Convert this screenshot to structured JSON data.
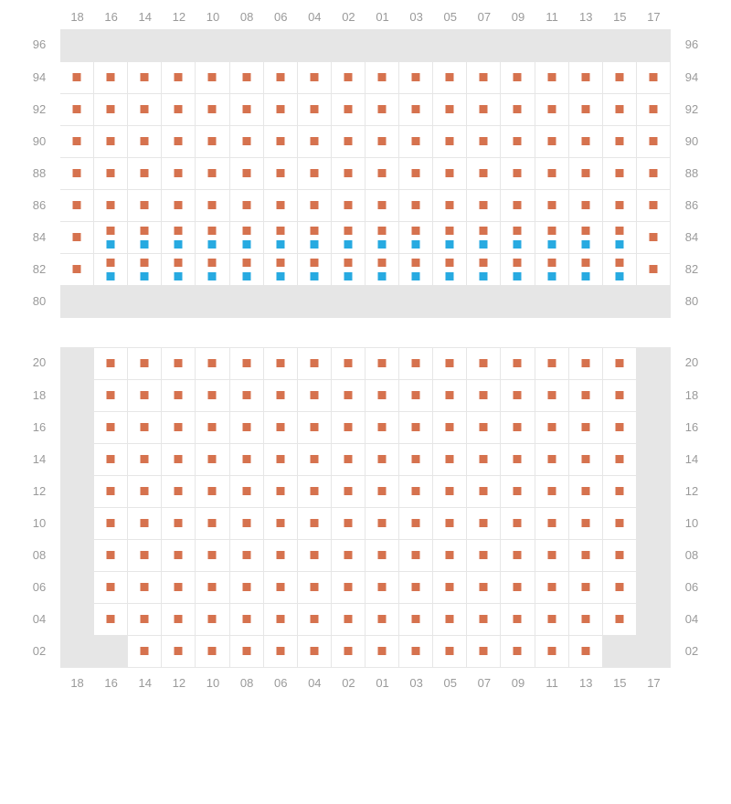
{
  "colors": {
    "cell_bg": "#ffffff",
    "empty_bg": "#e6e6e6",
    "grid_line": "#e6e6e6",
    "label": "#9a9a9a",
    "marker_orange": "#d6724e",
    "marker_blue": "#27aae1"
  },
  "columns": [
    "18",
    "16",
    "14",
    "12",
    "10",
    "08",
    "06",
    "04",
    "02",
    "01",
    "03",
    "05",
    "07",
    "09",
    "11",
    "13",
    "15",
    "17"
  ],
  "top": {
    "rows": [
      {
        "label": "96",
        "cells": [
          "empty",
          "empty",
          "empty",
          "empty",
          "empty",
          "empty",
          "empty",
          "empty",
          "empty",
          "empty",
          "empty",
          "empty",
          "empty",
          "empty",
          "empty",
          "empty",
          "empty",
          "empty"
        ]
      },
      {
        "label": "94",
        "cells": [
          "o",
          "o",
          "o",
          "o",
          "o",
          "o",
          "o",
          "o",
          "o",
          "o",
          "o",
          "o",
          "o",
          "o",
          "o",
          "o",
          "o",
          "o"
        ]
      },
      {
        "label": "92",
        "cells": [
          "o",
          "o",
          "o",
          "o",
          "o",
          "o",
          "o",
          "o",
          "o",
          "o",
          "o",
          "o",
          "o",
          "o",
          "o",
          "o",
          "o",
          "o"
        ]
      },
      {
        "label": "90",
        "cells": [
          "o",
          "o",
          "o",
          "o",
          "o",
          "o",
          "o",
          "o",
          "o",
          "o",
          "o",
          "o",
          "o",
          "o",
          "o",
          "o",
          "o",
          "o"
        ]
      },
      {
        "label": "88",
        "cells": [
          "o",
          "o",
          "o",
          "o",
          "o",
          "o",
          "o",
          "o",
          "o",
          "o",
          "o",
          "o",
          "o",
          "o",
          "o",
          "o",
          "o",
          "o"
        ]
      },
      {
        "label": "86",
        "cells": [
          "o",
          "o",
          "o",
          "o",
          "o",
          "o",
          "o",
          "o",
          "o",
          "o",
          "o",
          "o",
          "o",
          "o",
          "o",
          "o",
          "o",
          "o"
        ]
      },
      {
        "label": "84",
        "cells": [
          "o",
          "ob",
          "ob",
          "ob",
          "ob",
          "ob",
          "ob",
          "ob",
          "ob",
          "ob",
          "ob",
          "ob",
          "ob",
          "ob",
          "ob",
          "ob",
          "ob",
          "o"
        ]
      },
      {
        "label": "82",
        "cells": [
          "o",
          "ob",
          "ob",
          "ob",
          "ob",
          "ob",
          "ob",
          "ob",
          "ob",
          "ob",
          "ob",
          "ob",
          "ob",
          "ob",
          "ob",
          "ob",
          "ob",
          "o"
        ]
      },
      {
        "label": "80",
        "cells": [
          "empty",
          "empty",
          "empty",
          "empty",
          "empty",
          "empty",
          "empty",
          "empty",
          "empty",
          "empty",
          "empty",
          "empty",
          "empty",
          "empty",
          "empty",
          "empty",
          "empty",
          "empty"
        ]
      }
    ]
  },
  "bottom": {
    "rows": [
      {
        "label": "20",
        "cells": [
          "empty",
          "o",
          "o",
          "o",
          "o",
          "o",
          "o",
          "o",
          "o",
          "o",
          "o",
          "o",
          "o",
          "o",
          "o",
          "o",
          "o",
          "empty"
        ]
      },
      {
        "label": "18",
        "cells": [
          "empty",
          "o",
          "o",
          "o",
          "o",
          "o",
          "o",
          "o",
          "o",
          "o",
          "o",
          "o",
          "o",
          "o",
          "o",
          "o",
          "o",
          "empty"
        ]
      },
      {
        "label": "16",
        "cells": [
          "empty",
          "o",
          "o",
          "o",
          "o",
          "o",
          "o",
          "o",
          "o",
          "o",
          "o",
          "o",
          "o",
          "o",
          "o",
          "o",
          "o",
          "empty"
        ]
      },
      {
        "label": "14",
        "cells": [
          "empty",
          "o",
          "o",
          "o",
          "o",
          "o",
          "o",
          "o",
          "o",
          "o",
          "o",
          "o",
          "o",
          "o",
          "o",
          "o",
          "o",
          "empty"
        ]
      },
      {
        "label": "12",
        "cells": [
          "empty",
          "o",
          "o",
          "o",
          "o",
          "o",
          "o",
          "o",
          "o",
          "o",
          "o",
          "o",
          "o",
          "o",
          "o",
          "o",
          "o",
          "empty"
        ]
      },
      {
        "label": "10",
        "cells": [
          "empty",
          "o",
          "o",
          "o",
          "o",
          "o",
          "o",
          "o",
          "o",
          "o",
          "o",
          "o",
          "o",
          "o",
          "o",
          "o",
          "o",
          "empty"
        ]
      },
      {
        "label": "08",
        "cells": [
          "empty",
          "o",
          "o",
          "o",
          "o",
          "o",
          "o",
          "o",
          "o",
          "o",
          "o",
          "o",
          "o",
          "o",
          "o",
          "o",
          "o",
          "empty"
        ]
      },
      {
        "label": "06",
        "cells": [
          "empty",
          "o",
          "o",
          "o",
          "o",
          "o",
          "o",
          "o",
          "o",
          "o",
          "o",
          "o",
          "o",
          "o",
          "o",
          "o",
          "o",
          "empty"
        ]
      },
      {
        "label": "04",
        "cells": [
          "empty",
          "o",
          "o",
          "o",
          "o",
          "o",
          "o",
          "o",
          "o",
          "o",
          "o",
          "o",
          "o",
          "o",
          "o",
          "o",
          "o",
          "empty"
        ]
      },
      {
        "label": "02",
        "cells": [
          "empty",
          "empty",
          "o",
          "o",
          "o",
          "o",
          "o",
          "o",
          "o",
          "o",
          "o",
          "o",
          "o",
          "o",
          "o",
          "o",
          "empty",
          "empty"
        ]
      }
    ]
  }
}
